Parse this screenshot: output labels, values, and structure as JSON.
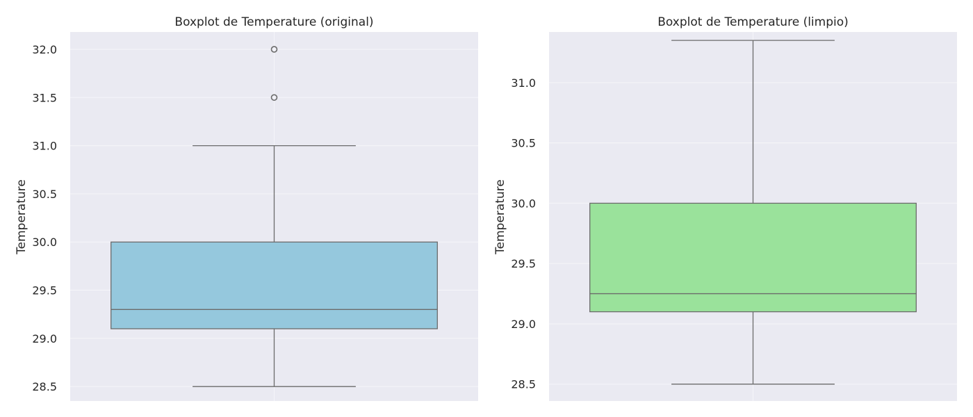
{
  "chart_data": [
    {
      "type": "box",
      "title": "Boxplot de Temperature (original)",
      "xlabel": "",
      "ylabel": "Temperature",
      "ylim": [
        28.35,
        32.18
      ],
      "yticks": [
        28.5,
        29.0,
        29.5,
        30.0,
        30.5,
        31.0,
        31.5,
        32.0
      ],
      "tick_labels": [
        "28.5",
        "29.0",
        "29.5",
        "30.0",
        "30.5",
        "31.0",
        "31.5",
        "32.0"
      ],
      "grid": true,
      "box_color": "#95c8dd",
      "box": {
        "whisker_low": 28.5,
        "q1": 29.1,
        "median": 29.3,
        "q3": 30.0,
        "whisker_high": 31.0
      },
      "outliers": [
        31.5,
        32.0
      ]
    },
    {
      "type": "box",
      "title": "Boxplot de Temperature (limpio)",
      "xlabel": "",
      "ylabel": "Temperature",
      "ylim": [
        28.36,
        31.42
      ],
      "yticks": [
        28.5,
        29.0,
        29.5,
        30.0,
        30.5,
        31.0
      ],
      "tick_labels": [
        "28.5",
        "29.0",
        "29.5",
        "30.0",
        "30.5",
        "31.0"
      ],
      "grid": true,
      "box_color": "#9ae29b",
      "box": {
        "whisker_low": 28.5,
        "q1": 29.1,
        "median": 29.25,
        "q3": 30.0,
        "whisker_high": 31.35
      },
      "outliers": []
    }
  ]
}
